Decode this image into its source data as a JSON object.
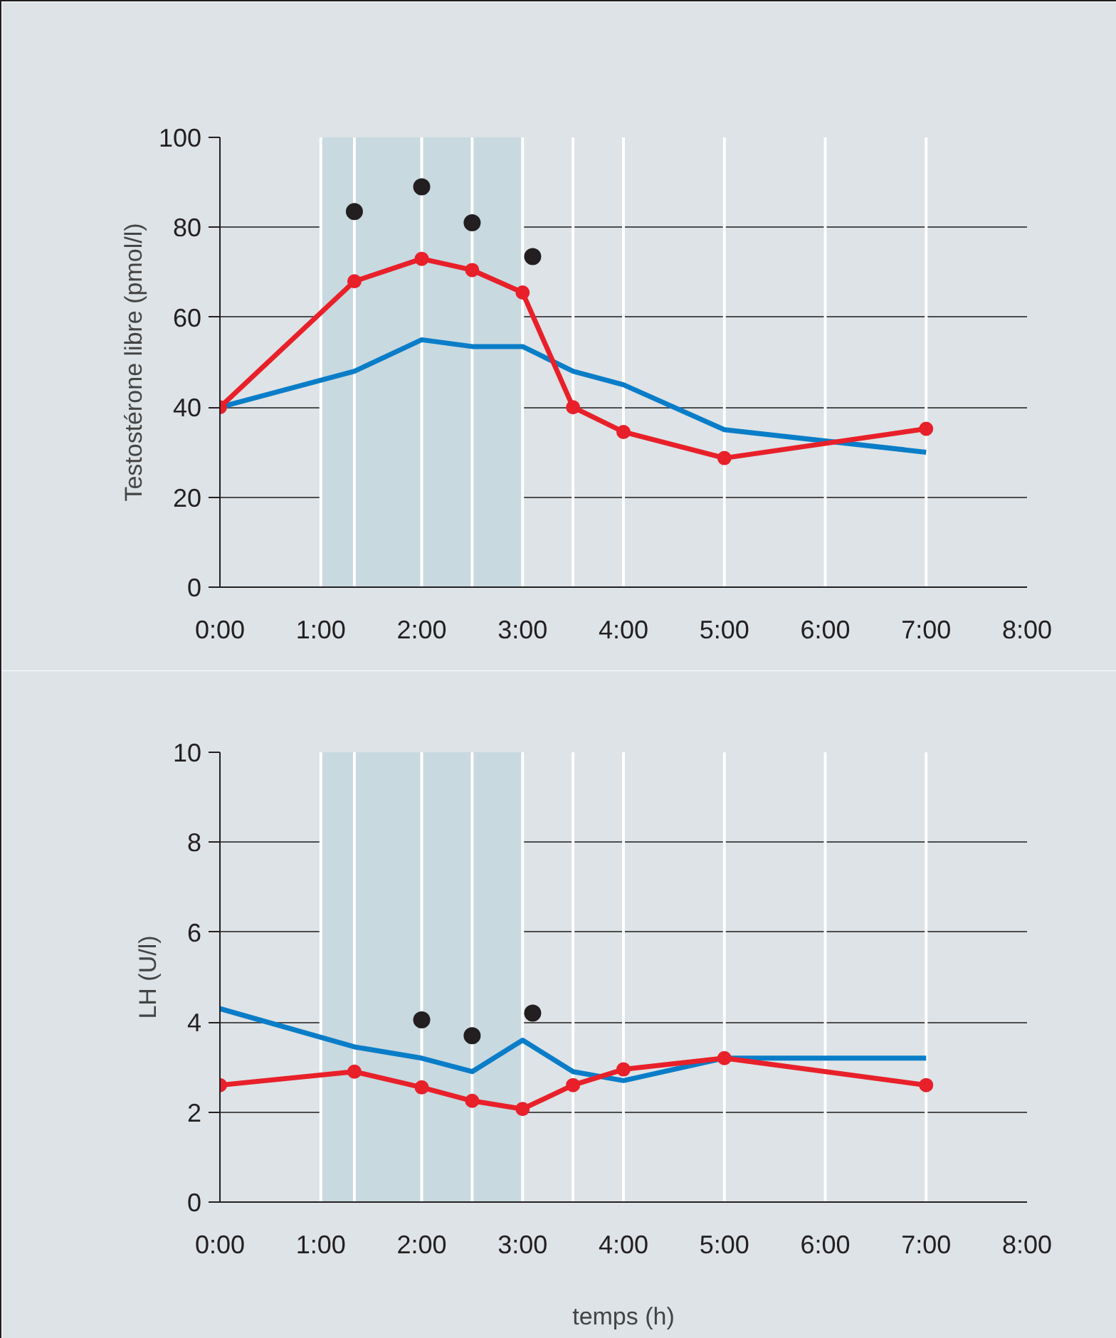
{
  "chart_data": [
    {
      "type": "line",
      "ylabel": "Testostérone libre (pmol/l)",
      "x": [
        0,
        1.333,
        2,
        2.5,
        3,
        3.5,
        4,
        5,
        7
      ],
      "xlim": [
        0,
        8
      ],
      "xticks": [
        {
          "value": 0,
          "label": "0:00"
        },
        {
          "value": 1,
          "label": "1:00"
        },
        {
          "value": 2,
          "label": "2:00"
        },
        {
          "value": 3,
          "label": "3:00"
        },
        {
          "value": 4,
          "label": "4:00"
        },
        {
          "value": 5,
          "label": "5:00"
        },
        {
          "value": 6,
          "label": "6:00"
        },
        {
          "value": 7,
          "label": "7:00"
        },
        {
          "value": 8,
          "label": "8:00"
        }
      ],
      "ylim": [
        0,
        100
      ],
      "yticks": [
        0,
        20,
        40,
        60,
        80,
        100
      ],
      "grid": "y",
      "line_style": "solid",
      "bands": [
        {
          "axis": "x",
          "from": 1,
          "to": 3,
          "color": "#c8d9e0"
        }
      ],
      "ref_lines": [
        {
          "axis": "x",
          "value": 1,
          "color": "#ffffff"
        },
        {
          "axis": "x",
          "value": 1.333,
          "color": "#ffffff"
        },
        {
          "axis": "x",
          "value": 2,
          "color": "#ffffff"
        },
        {
          "axis": "x",
          "value": 2.5,
          "color": "#ffffff"
        },
        {
          "axis": "x",
          "value": 3,
          "color": "#ffffff"
        },
        {
          "axis": "x",
          "value": 3.5,
          "color": "#ffffff"
        },
        {
          "axis": "x",
          "value": 4,
          "color": "#ffffff"
        },
        {
          "axis": "x",
          "value": 5,
          "color": "#ffffff"
        },
        {
          "axis": "x",
          "value": 6,
          "color": "#ffffff"
        },
        {
          "axis": "x",
          "value": 7,
          "color": "#ffffff"
        }
      ],
      "series": [
        {
          "color": "#0a7dc8",
          "marker": "none",
          "values": [
            40,
            48,
            55,
            53.5,
            53.5,
            48,
            45,
            35,
            30
          ]
        },
        {
          "color": "#e8202a",
          "marker": "circle",
          "values": [
            40,
            68,
            73,
            70.5,
            65.5,
            40,
            34.5,
            28.7,
            35.2
          ]
        },
        {
          "type": "scatter",
          "color": "#231f20",
          "marker": "circle",
          "x": [
            1.333,
            2,
            2.5,
            3.1
          ],
          "values": [
            83.5,
            89,
            81,
            73.5
          ]
        }
      ]
    },
    {
      "type": "line",
      "xlabel": "temps (h)",
      "ylabel": "LH (U/l)",
      "x": [
        0,
        1.333,
        2,
        2.5,
        3,
        3.5,
        4,
        5,
        7
      ],
      "xlim": [
        0,
        8
      ],
      "xticks": [
        {
          "value": 0,
          "label": "0:00"
        },
        {
          "value": 1,
          "label": "1:00"
        },
        {
          "value": 2,
          "label": "2:00"
        },
        {
          "value": 3,
          "label": "3:00"
        },
        {
          "value": 4,
          "label": "4:00"
        },
        {
          "value": 5,
          "label": "5:00"
        },
        {
          "value": 6,
          "label": "6:00"
        },
        {
          "value": 7,
          "label": "7:00"
        },
        {
          "value": 8,
          "label": "8:00"
        }
      ],
      "ylim": [
        0,
        10
      ],
      "yticks": [
        0,
        2,
        4,
        6,
        8,
        10
      ],
      "grid": "y",
      "line_style": "solid",
      "bands": [
        {
          "axis": "x",
          "from": 1,
          "to": 3,
          "color": "#c8d9e0"
        }
      ],
      "ref_lines": [
        {
          "axis": "x",
          "value": 1,
          "color": "#ffffff"
        },
        {
          "axis": "x",
          "value": 1.333,
          "color": "#ffffff"
        },
        {
          "axis": "x",
          "value": 2,
          "color": "#ffffff"
        },
        {
          "axis": "x",
          "value": 2.5,
          "color": "#ffffff"
        },
        {
          "axis": "x",
          "value": 3,
          "color": "#ffffff"
        },
        {
          "axis": "x",
          "value": 3.5,
          "color": "#ffffff"
        },
        {
          "axis": "x",
          "value": 4,
          "color": "#ffffff"
        },
        {
          "axis": "x",
          "value": 5,
          "color": "#ffffff"
        },
        {
          "axis": "x",
          "value": 6,
          "color": "#ffffff"
        },
        {
          "axis": "x",
          "value": 7,
          "color": "#ffffff"
        }
      ],
      "series": [
        {
          "color": "#0a7dc8",
          "marker": "none",
          "values": [
            4.3,
            3.45,
            3.2,
            2.9,
            3.6,
            2.9,
            2.7,
            3.2,
            3.2
          ]
        },
        {
          "color": "#e8202a",
          "marker": "circle",
          "values": [
            2.6,
            2.9,
            2.55,
            2.25,
            2.07,
            2.6,
            2.95,
            3.2,
            2.6
          ]
        },
        {
          "type": "scatter",
          "color": "#231f20",
          "marker": "circle",
          "x": [
            2,
            2.5,
            3.1
          ],
          "values": [
            4.05,
            3.7,
            4.2
          ]
        }
      ]
    }
  ]
}
